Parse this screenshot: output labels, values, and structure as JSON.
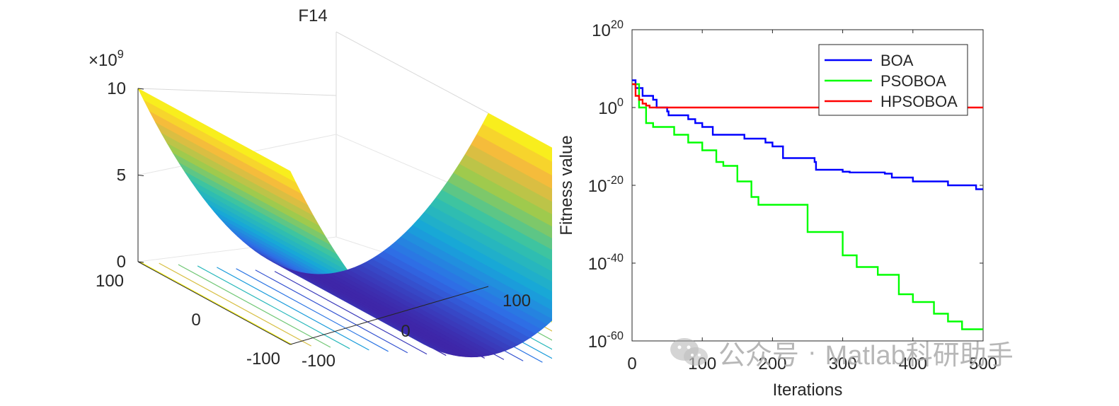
{
  "chart_data": [
    {
      "type": "surface",
      "title": "F14",
      "z_exponent_label": "×10",
      "z_exponent": "9",
      "z_ticks": [
        "10",
        "5",
        "0"
      ],
      "z_range": [
        0,
        10
      ],
      "x_ticks": [
        "100",
        "0",
        "-100"
      ],
      "y_ticks": [
        "-100",
        "0",
        "100"
      ],
      "x_range": [
        -100,
        100
      ],
      "y_range": [
        -100,
        100
      ],
      "colormap": [
        "#3e26a8",
        "#2f6be6",
        "#17a7d8",
        "#35c3a8",
        "#9fca4d",
        "#f5b93d",
        "#f9fb15"
      ]
    },
    {
      "type": "line",
      "xlabel": "Iterations",
      "ylabel": "Fitness value",
      "yscale": "log",
      "xlim": [
        0,
        500
      ],
      "ylim_exp": [
        -60,
        20
      ],
      "x_ticks": [
        "0",
        "100",
        "200",
        "300",
        "400",
        "500"
      ],
      "y_ticks": [
        {
          "base": "10",
          "exp": "20",
          "value": 20
        },
        {
          "base": "10",
          "exp": "0",
          "value": 0
        },
        {
          "base": "10",
          "exp": "-20",
          "value": -20
        },
        {
          "base": "10",
          "exp": "-40",
          "value": -40
        },
        {
          "base": "10",
          "exp": "-60",
          "value": -60
        }
      ],
      "legend_position": "top-right",
      "series": [
        {
          "name": "BOA",
          "color": "#0000ff",
          "x": [
            0,
            5,
            15,
            30,
            35,
            50,
            52,
            80,
            90,
            100,
            115,
            160,
            190,
            200,
            215,
            260,
            262,
            300,
            310,
            360,
            370,
            400,
            450,
            490,
            500
          ],
          "log10_y": [
            7,
            5,
            3,
            2,
            0,
            -1,
            -2,
            -3,
            -4,
            -5,
            -7,
            -8,
            -9,
            -10,
            -13,
            -14,
            -16,
            -16.5,
            -16.7,
            -17,
            -18,
            -19,
            -20,
            -21,
            -21
          ]
        },
        {
          "name": "PSOBOA",
          "color": "#00ff00",
          "x": [
            0,
            10,
            20,
            30,
            50,
            60,
            80,
            100,
            120,
            130,
            150,
            170,
            180,
            200,
            250,
            300,
            320,
            350,
            380,
            400,
            430,
            450,
            470,
            500
          ],
          "log10_y": [
            6,
            0,
            -4,
            -5,
            -5,
            -7,
            -9,
            -11,
            -14,
            -15,
            -19,
            -23,
            -25,
            -25,
            -32,
            -38,
            -41,
            -43,
            -48,
            -50,
            -53,
            -55,
            -57,
            -57
          ]
        },
        {
          "name": "HPSOBOA",
          "color": "#ff0000",
          "x": [
            0,
            5,
            10,
            15,
            20,
            25,
            500
          ],
          "log10_y": [
            6,
            3,
            2,
            1,
            0.5,
            0,
            0
          ]
        }
      ]
    }
  ],
  "watermark": {
    "text_left": "公众号",
    "separator": "·",
    "text_right": "Matlab科研助手"
  }
}
